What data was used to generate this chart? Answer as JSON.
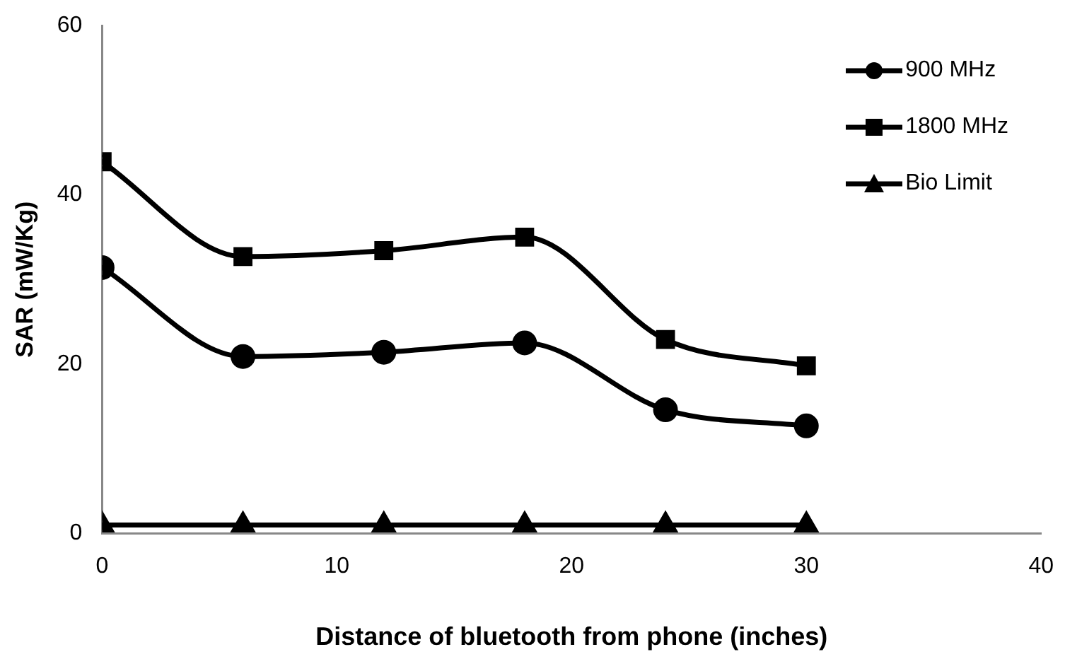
{
  "chart_data": {
    "type": "line",
    "xlabel": "Distance of bluetooth from phone (inches)",
    "ylabel": "SAR (mW/Kg)",
    "xlim": [
      0,
      40
    ],
    "xticks": [
      0,
      10,
      20,
      30,
      40
    ],
    "ylim": [
      0,
      60
    ],
    "yticks": [
      0,
      20,
      40,
      60
    ],
    "grid": false,
    "legend": "top right",
    "line_style": "solid",
    "series": [
      {
        "name": "900 MHz",
        "color": "#000000",
        "marker": "circle",
        "x": [
          0,
          6,
          12,
          18,
          24,
          30
        ],
        "values": [
          31.4,
          20.9,
          21.4,
          22.5,
          14.6,
          12.7
        ]
      },
      {
        "name": "1800 MHz",
        "color": "#000000",
        "marker": "square",
        "x": [
          0,
          6,
          12,
          18,
          24,
          30
        ],
        "values": [
          43.9,
          32.7,
          33.4,
          35,
          22.9,
          19.8
        ]
      },
      {
        "name": "Bio Limit",
        "color": "#000000",
        "marker": "triangle",
        "x": [
          0,
          6,
          12,
          18,
          24,
          30
        ],
        "values": [
          1,
          1,
          1,
          1,
          1,
          1
        ]
      }
    ]
  }
}
